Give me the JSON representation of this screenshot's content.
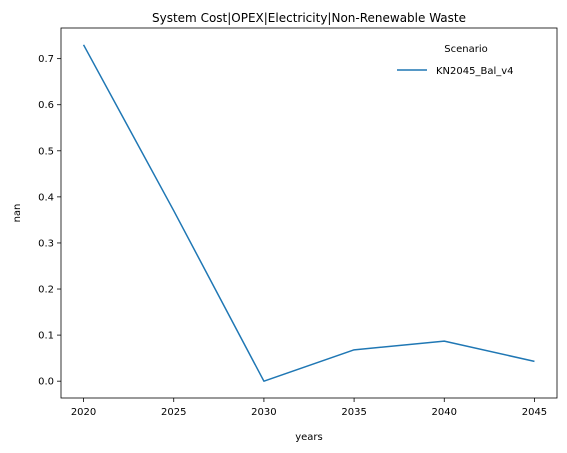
{
  "chart_data": {
    "type": "line",
    "title": "System Cost|OPEX|Electricity|Non-Renewable Waste",
    "xlabel": "years",
    "ylabel": "nan",
    "x": [
      2020,
      2025,
      2030,
      2035,
      2040,
      2045
    ],
    "series": [
      {
        "name": "KN2045_Bal_v4",
        "color": "#1f77b4",
        "values": [
          0.73,
          0.37,
          0.0,
          0.068,
          0.087,
          0.043
        ]
      }
    ],
    "xticks": [
      2020,
      2025,
      2030,
      2035,
      2040,
      2045
    ],
    "yticks": [
      0.0,
      0.1,
      0.2,
      0.3,
      0.4,
      0.5,
      0.6,
      0.7
    ],
    "ytick_labels": [
      "0.0",
      "0.1",
      "0.2",
      "0.3",
      "0.4",
      "0.5",
      "0.6",
      "0.7"
    ],
    "xlim": [
      2018.75,
      2046.25
    ],
    "ylim": [
      -0.0365,
      0.7665
    ],
    "grid": false,
    "legend": {
      "title": "Scenario",
      "placement": "top-right"
    }
  }
}
